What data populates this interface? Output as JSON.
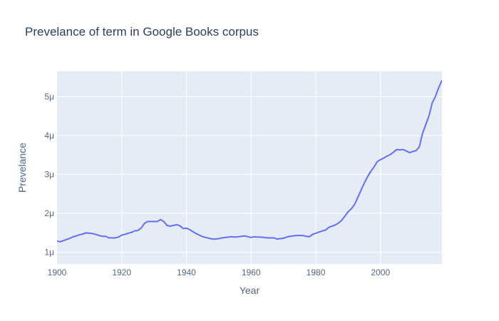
{
  "chart_data": {
    "type": "line",
    "title": "Prevelance of term in Google Books corpus",
    "xlabel": "Year",
    "ylabel": "Prevelance",
    "xlim": [
      1900,
      2019
    ],
    "ylim": [
      0.7,
      5.65
    ],
    "y_unit_suffix": "μ",
    "grid": true,
    "plot_bgcolor": "#e5ecf6",
    "line_color": "#636efa",
    "x_ticks": [
      1900,
      1920,
      1940,
      1960,
      1980,
      2000
    ],
    "x_tick_labels": [
      "1900",
      "1920",
      "1940",
      "1960",
      "1980",
      "2000"
    ],
    "y_ticks": [
      1,
      2,
      3,
      4,
      5
    ],
    "y_tick_labels": [
      "1μ",
      "2μ",
      "3μ",
      "4μ",
      "5μ"
    ],
    "series": [
      {
        "x": [
          1900,
          1901,
          1902,
          1903,
          1904,
          1905,
          1906,
          1907,
          1908,
          1909,
          1910,
          1911,
          1912,
          1913,
          1914,
          1915,
          1916,
          1917,
          1918,
          1919,
          1920,
          1921,
          1922,
          1923,
          1924,
          1925,
          1926,
          1927,
          1928,
          1929,
          1930,
          1931,
          1932,
          1933,
          1934,
          1935,
          1936,
          1937,
          1938,
          1939,
          1940,
          1941,
          1942,
          1943,
          1944,
          1945,
          1946,
          1947,
          1948,
          1949,
          1950,
          1951,
          1952,
          1953,
          1954,
          1955,
          1956,
          1957,
          1958,
          1959,
          1960,
          1961,
          1962,
          1963,
          1964,
          1965,
          1966,
          1967,
          1968,
          1969,
          1970,
          1971,
          1972,
          1973,
          1974,
          1975,
          1976,
          1977,
          1978,
          1979,
          1980,
          1981,
          1982,
          1983,
          1984,
          1985,
          1986,
          1987,
          1988,
          1989,
          1990,
          1991,
          1992,
          1993,
          1994,
          1995,
          1996,
          1997,
          1998,
          1999,
          2000,
          2001,
          2002,
          2003,
          2004,
          2005,
          2006,
          2007,
          2008,
          2009,
          2010,
          2011,
          2012,
          2013,
          2014,
          2015,
          2016,
          2017,
          2018,
          2019
        ],
        "y": [
          1.29,
          1.27,
          1.3,
          1.33,
          1.36,
          1.4,
          1.42,
          1.45,
          1.47,
          1.5,
          1.49,
          1.48,
          1.46,
          1.43,
          1.41,
          1.41,
          1.37,
          1.37,
          1.37,
          1.39,
          1.44,
          1.46,
          1.49,
          1.51,
          1.55,
          1.56,
          1.62,
          1.74,
          1.79,
          1.79,
          1.79,
          1.79,
          1.84,
          1.79,
          1.69,
          1.67,
          1.69,
          1.71,
          1.68,
          1.61,
          1.62,
          1.58,
          1.53,
          1.48,
          1.44,
          1.4,
          1.38,
          1.36,
          1.34,
          1.34,
          1.35,
          1.37,
          1.38,
          1.39,
          1.4,
          1.39,
          1.4,
          1.41,
          1.42,
          1.4,
          1.38,
          1.4,
          1.39,
          1.39,
          1.38,
          1.37,
          1.37,
          1.37,
          1.34,
          1.35,
          1.36,
          1.39,
          1.41,
          1.42,
          1.43,
          1.43,
          1.43,
          1.41,
          1.4,
          1.46,
          1.49,
          1.52,
          1.55,
          1.57,
          1.64,
          1.67,
          1.7,
          1.75,
          1.82,
          1.93,
          2.04,
          2.12,
          2.23,
          2.41,
          2.6,
          2.78,
          2.94,
          3.08,
          3.19,
          3.33,
          3.38,
          3.42,
          3.47,
          3.51,
          3.57,
          3.64,
          3.63,
          3.64,
          3.6,
          3.56,
          3.59,
          3.61,
          3.71,
          4.06,
          4.28,
          4.51,
          4.84,
          5.01,
          5.23,
          5.42
        ]
      }
    ]
  }
}
